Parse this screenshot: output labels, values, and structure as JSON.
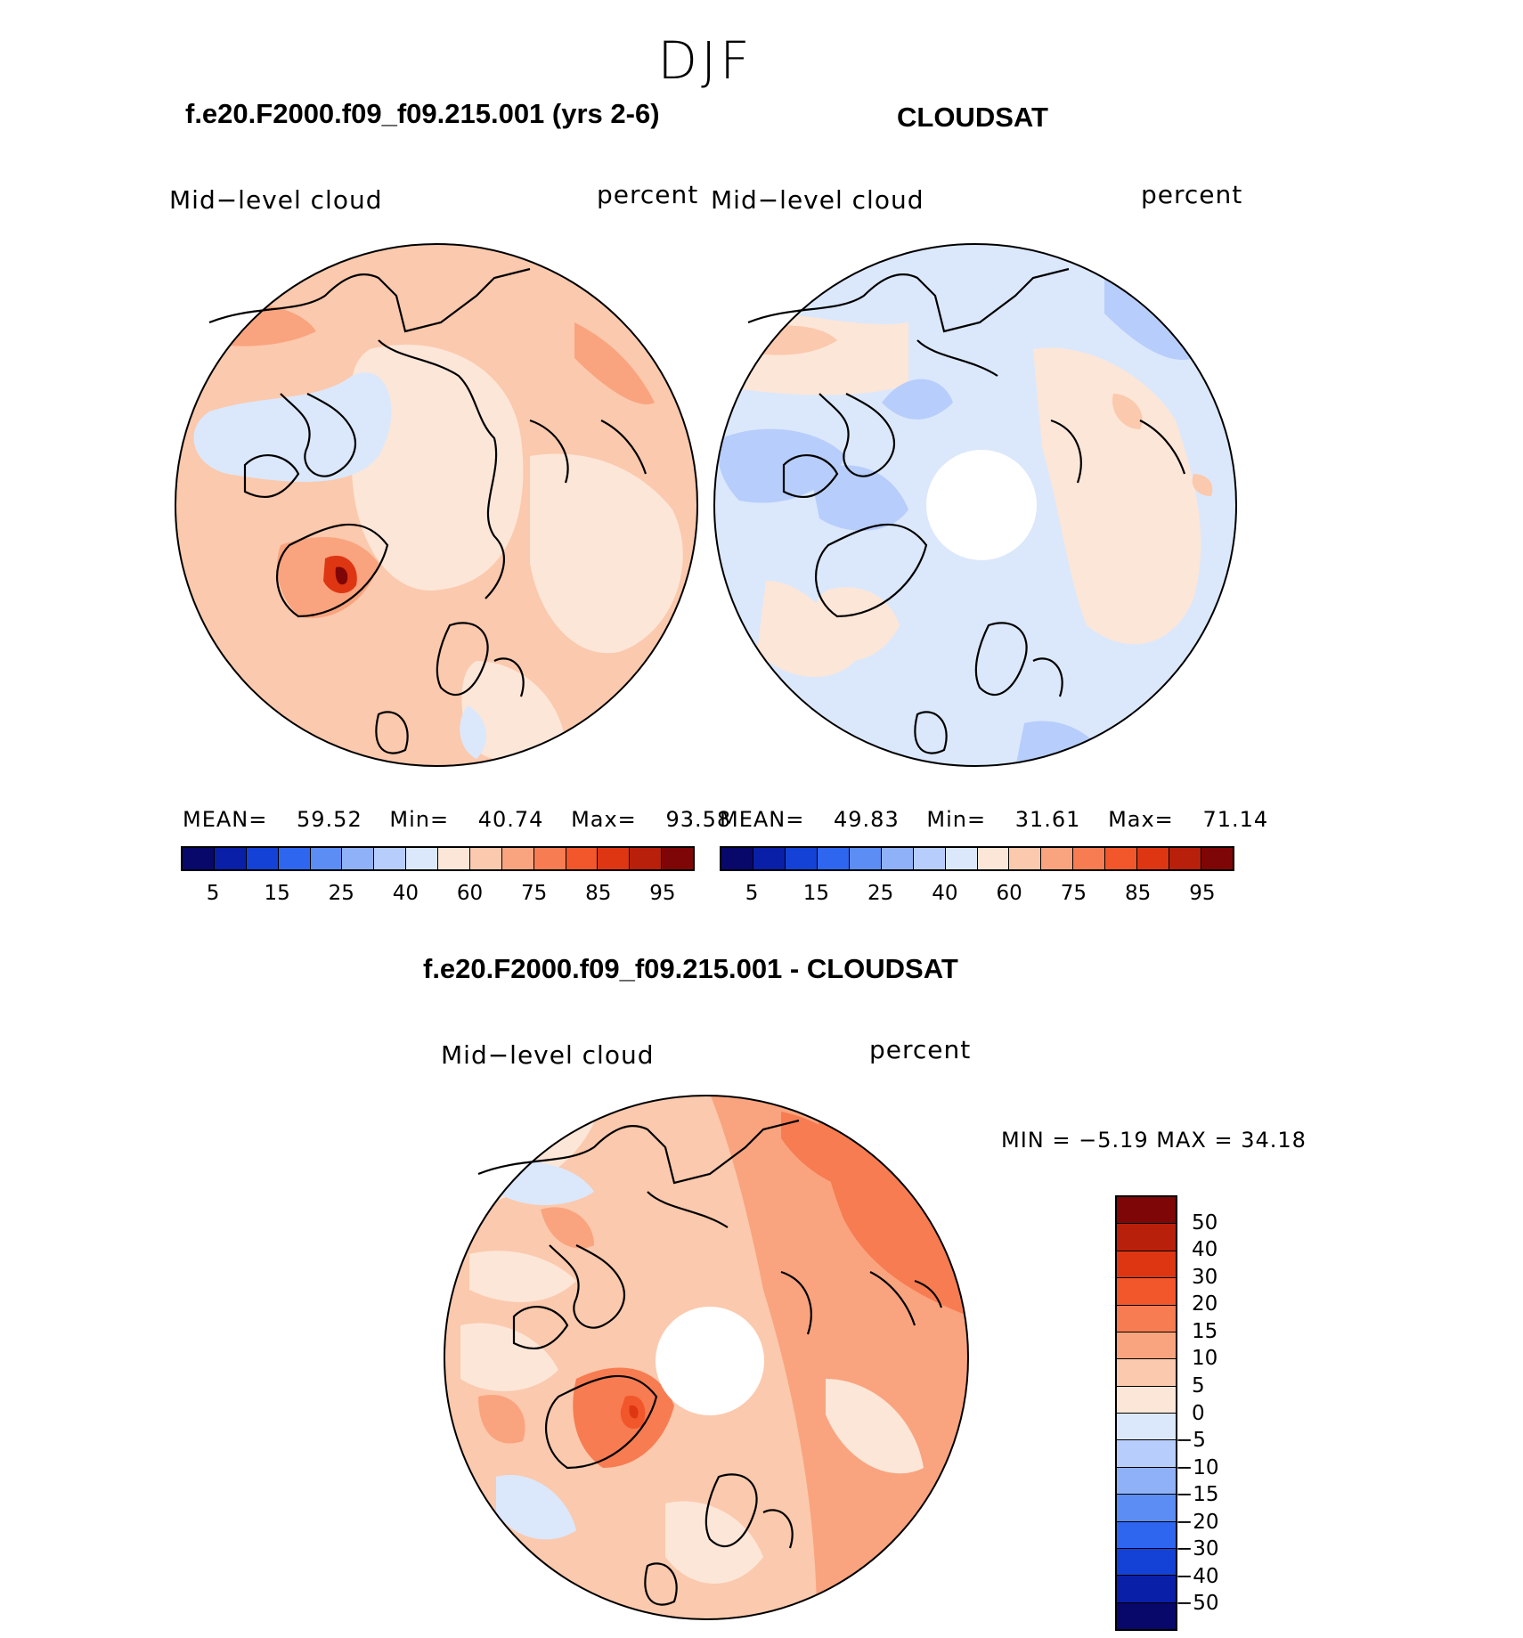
{
  "season": "DJF",
  "panel1": {
    "title": "f.e20.F2000.f09_f09.215.001 (yrs 2-6)",
    "var_label": "Mid−level cloud",
    "units": "percent",
    "mean_label": "MEAN=",
    "mean": "59.52",
    "min_label": "Min=",
    "min": "40.74",
    "max_label": "Max=",
    "max": "93.58"
  },
  "panel2": {
    "title": "CLOUDSAT",
    "var_label": "Mid−level cloud",
    "units": "percent",
    "mean_label": "MEAN=",
    "mean": "49.83",
    "min_label": "Min=",
    "min": "31.61",
    "max_label": "Max=",
    "max": "71.14"
  },
  "panel3": {
    "title": "f.e20.F2000.f09_f09.215.001 - CLOUDSAT",
    "var_label": "Mid−level cloud",
    "units": "percent",
    "stats": "MIN =   −5.19  MAX =   34.18"
  },
  "abs_colorbar": {
    "colors": [
      "#08086b",
      "#0a1fa8",
      "#1442d6",
      "#2f66f0",
      "#5b8df5",
      "#8fb1f8",
      "#b7cdfb",
      "#dbe8fb",
      "#fce6d8",
      "#fbc9ad",
      "#f9a47f",
      "#f77c52",
      "#f2562b",
      "#de3613",
      "#b8200b",
      "#7f0606"
    ],
    "tick_labels": [
      "5",
      "15",
      "25",
      "40",
      "60",
      "75",
      "85",
      "95"
    ]
  },
  "diff_colorbar": {
    "colors": [
      "#7f0606",
      "#b8200b",
      "#de3613",
      "#f2562b",
      "#f77c52",
      "#f9a47f",
      "#fbc9ad",
      "#fce6d8",
      "#dbe8fb",
      "#b7cdfb",
      "#8fb1f8",
      "#5b8df5",
      "#2f66f0",
      "#1442d6",
      "#0a1fa8",
      "#08086b"
    ],
    "tick_labels": [
      "50",
      "40",
      "30",
      "20",
      "15",
      "10",
      "5",
      "0",
      "−5",
      "−10",
      "−15",
      "−20",
      "−30",
      "−40",
      "−50"
    ]
  }
}
